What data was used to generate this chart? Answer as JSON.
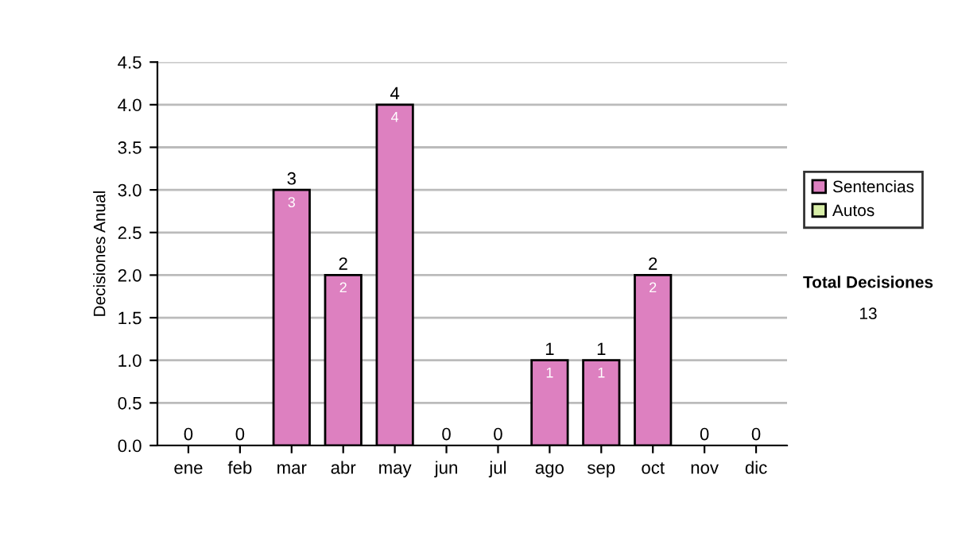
{
  "chart_data": {
    "type": "bar",
    "stacked": true,
    "ylabel": "Decisiones Anual",
    "categories": [
      "ene",
      "feb",
      "mar",
      "abr",
      "may",
      "jun",
      "jul",
      "ago",
      "sep",
      "oct",
      "nov",
      "dic"
    ],
    "series": [
      {
        "name": "Sentencias",
        "color": "#dd80c0",
        "values": [
          0,
          0,
          3,
          2,
          4,
          0,
          0,
          1,
          1,
          2,
          0,
          0
        ],
        "value_labels": [
          null,
          null,
          "3",
          "2",
          "4",
          null,
          null,
          "1",
          "1",
          "2",
          null,
          null
        ]
      },
      {
        "name": "Autos",
        "color": "#d8eea8",
        "values": [
          0,
          0,
          0,
          0,
          0,
          0,
          0,
          0,
          0,
          0,
          0,
          0
        ]
      }
    ],
    "totals": [
      "0",
      "0",
      "3",
      "2",
      "4",
      "0",
      "0",
      "1",
      "1",
      "2",
      "0",
      "0"
    ],
    "ylim": [
      0,
      4.5
    ],
    "yticks": [
      {
        "value": 0,
        "label": "0.0"
      },
      {
        "value": 0.5,
        "label": "0.5"
      },
      {
        "value": 1,
        "label": "1.0"
      },
      {
        "value": 1.5,
        "label": "1.5"
      },
      {
        "value": 2,
        "label": "2.0"
      },
      {
        "value": 2.5,
        "label": "2.5"
      },
      {
        "value": 3,
        "label": "3.0"
      },
      {
        "value": 3.5,
        "label": "3.5"
      },
      {
        "value": 4,
        "label": "4.0"
      },
      {
        "value": 4.5,
        "label": "4.5"
      }
    ],
    "grid": "y",
    "legend": "right",
    "annotations": [
      "Total Decisiones",
      "13"
    ]
  }
}
